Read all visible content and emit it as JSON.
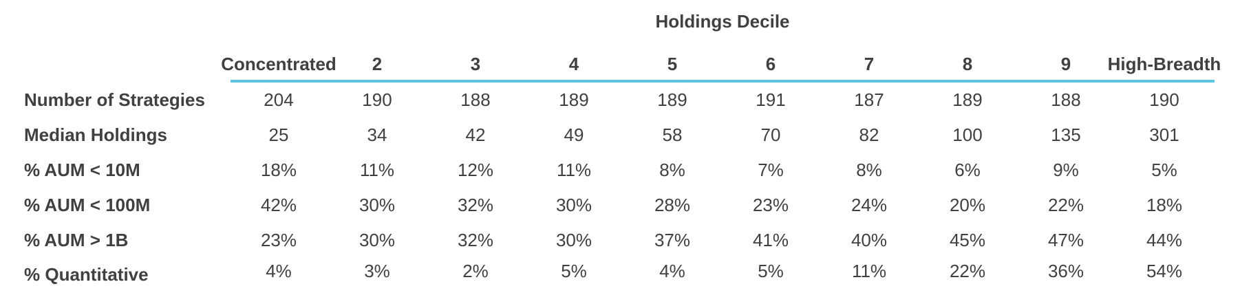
{
  "table": {
    "group_title": "Holdings Decile",
    "columns": [
      "Concentrated",
      "2",
      "3",
      "4",
      "5",
      "6",
      "7",
      "8",
      "9",
      "High-Breadth"
    ],
    "rule_color": "#5bc5e3",
    "rows": [
      {
        "label": "Number of Strategies",
        "values": [
          "204",
          "190",
          "188",
          "189",
          "189",
          "191",
          "187",
          "189",
          "188",
          "190"
        ]
      },
      {
        "label": "Median Holdings",
        "values": [
          "25",
          "34",
          "42",
          "49",
          "58",
          "70",
          "82",
          "100",
          "135",
          "301"
        ]
      },
      {
        "label": "% AUM < 10M",
        "values": [
          "18%",
          "11%",
          "12%",
          "11%",
          "8%",
          "7%",
          "8%",
          "6%",
          "9%",
          "5%"
        ]
      },
      {
        "label": "% AUM < 100M",
        "values": [
          "42%",
          "30%",
          "32%",
          "30%",
          "28%",
          "23%",
          "24%",
          "20%",
          "22%",
          "18%"
        ]
      },
      {
        "label": "% AUM > 1B",
        "values": [
          "23%",
          "30%",
          "32%",
          "30%",
          "37%",
          "41%",
          "40%",
          "45%",
          "47%",
          "44%"
        ]
      },
      {
        "label": "% Quantitative",
        "values": [
          "4%",
          "3%",
          "2%",
          "5%",
          "4%",
          "5%",
          "11%",
          "22%",
          "36%",
          "54%"
        ]
      }
    ]
  }
}
